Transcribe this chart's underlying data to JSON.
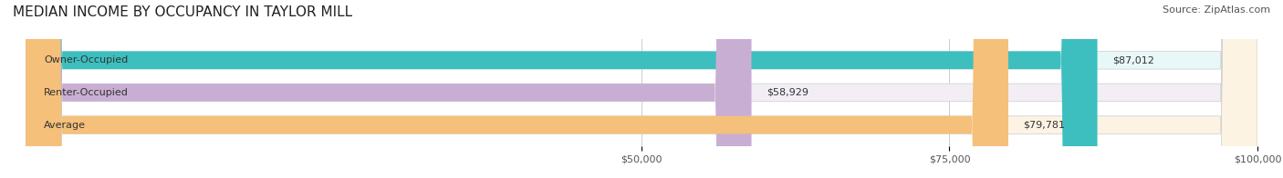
{
  "title": "MEDIAN INCOME BY OCCUPANCY IN TAYLOR MILL",
  "source": "Source: ZipAtlas.com",
  "categories": [
    "Owner-Occupied",
    "Renter-Occupied",
    "Average"
  ],
  "values": [
    87012,
    58929,
    79781
  ],
  "bar_colors": [
    "#3dbfbf",
    "#c9aed4",
    "#f5c07a"
  ],
  "bar_bg_colors": [
    "#e8f8f8",
    "#f3eef6",
    "#fdf3e3"
  ],
  "value_labels": [
    "$87,012",
    "$58,929",
    "$79,781"
  ],
  "xlim": [
    0,
    100000
  ],
  "xticks": [
    50000,
    75000,
    100000
  ],
  "xtick_labels": [
    "$50,000",
    "$75,000",
    "$100,000"
  ],
  "title_fontsize": 11,
  "source_fontsize": 8,
  "label_fontsize": 8,
  "bar_height": 0.55,
  "background_color": "#ffffff",
  "bar_bg_alpha": 1.0
}
